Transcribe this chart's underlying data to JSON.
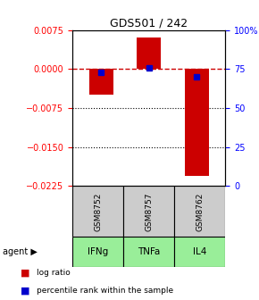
{
  "title": "GDS501 / 242",
  "samples": [
    "GSM8752",
    "GSM8757",
    "GSM8762"
  ],
  "agents": [
    "IFNg",
    "TNFa",
    "IL4"
  ],
  "log_ratios": [
    -0.005,
    0.006,
    -0.0205
  ],
  "percentile_ranks": [
    73,
    76,
    70
  ],
  "ylim_left": [
    -0.0225,
    0.0075
  ],
  "ylim_right": [
    0,
    100
  ],
  "yticks_left": [
    0.0075,
    0,
    -0.0075,
    -0.015,
    -0.0225
  ],
  "yticks_right": [
    100,
    75,
    50,
    25,
    0
  ],
  "bar_color": "#cc0000",
  "dot_color": "#0000cc",
  "zero_line_color": "#cc0000",
  "grid_color": "#000000",
  "agent_bg_color": "#99ee99",
  "sample_bg_color": "#cccccc",
  "legend_bar_label": "log ratio",
  "legend_dot_label": "percentile rank within the sample",
  "agent_label": "agent",
  "bar_width": 0.5,
  "title_fontsize": 9,
  "tick_fontsize": 7,
  "label_fontsize": 7
}
